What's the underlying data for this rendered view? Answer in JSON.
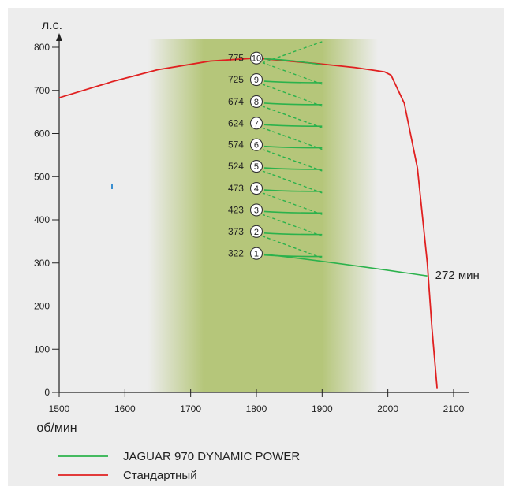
{
  "chart_data": {
    "type": "line",
    "x_unit": "об/мин",
    "y_unit": "л.с.",
    "xlim": [
      1500,
      2100
    ],
    "ylim": [
      0,
      800
    ],
    "x_ticks": [
      1500,
      1600,
      1700,
      1800,
      1900,
      2000,
      2100
    ],
    "y_ticks": [
      0,
      100,
      200,
      300,
      400,
      500,
      600,
      700,
      800
    ],
    "band": {
      "x_start": 1635,
      "x_end": 1985,
      "solid_start": 1720,
      "solid_end": 1900
    },
    "series": [
      {
        "name": "Стандартный",
        "color": "#e02020",
        "points": [
          [
            1500,
            683
          ],
          [
            1580,
            720
          ],
          [
            1650,
            748
          ],
          [
            1730,
            768
          ],
          [
            1800,
            775
          ],
          [
            1900,
            761
          ],
          [
            1950,
            753
          ],
          [
            1995,
            743
          ],
          [
            2005,
            735
          ],
          [
            2025,
            670
          ],
          [
            2045,
            520
          ],
          [
            2060,
            300
          ],
          [
            2067,
            150
          ],
          [
            2075,
            8
          ]
        ]
      },
      {
        "name": "JAGUAR 970 DYNAMIC POWER",
        "color": "#2bb24c",
        "gears": [
          {
            "gear": "1",
            "power": 322
          },
          {
            "gear": "2",
            "power": 373
          },
          {
            "gear": "3",
            "power": 423
          },
          {
            "gear": "4",
            "power": 473
          },
          {
            "gear": "5",
            "power": 524
          },
          {
            "gear": "6",
            "power": 574
          },
          {
            "gear": "7",
            "power": 624
          },
          {
            "gear": "8",
            "power": 674
          },
          {
            "gear": "9",
            "power": 725
          },
          {
            "gear": "10",
            "power": 775
          }
        ],
        "gear_x": 1800,
        "gear_end_x": 1900,
        "final_end": [
          2060,
          270
        ]
      }
    ],
    "annotation": {
      "text": "272 мин",
      "x": 2060,
      "y": 270
    },
    "legend": {
      "placement": "bottom-left"
    }
  }
}
